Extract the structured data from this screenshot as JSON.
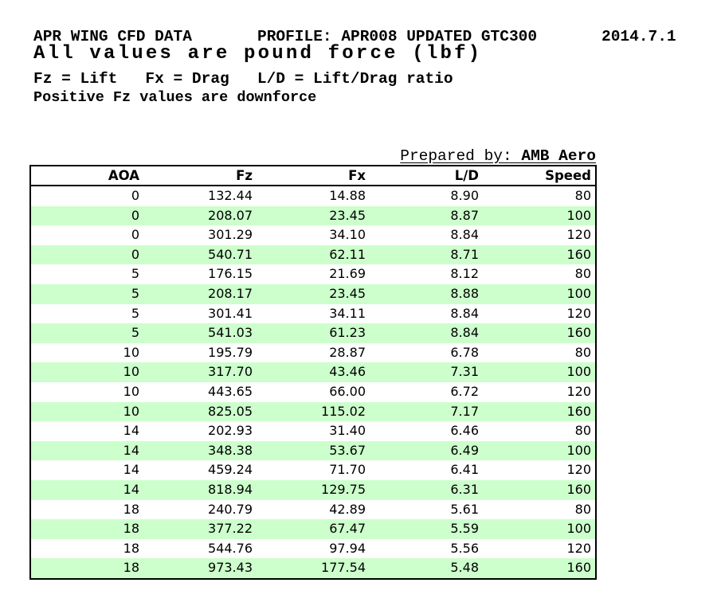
{
  "header": {
    "title": "APR WING CFD DATA",
    "profile": "PROFILE: APR008 UPDATED GTC300",
    "version": "2014.7.1",
    "subtitle": "All values are pound force (lbf)",
    "legend": "Fz = Lift   Fx = Drag   L/D = Lift/Drag ratio",
    "note": "Positive Fz values are downforce"
  },
  "prepared_by": {
    "label": "Prepared by: ",
    "value": "AMB Aero"
  },
  "table": {
    "columns": [
      "AOA",
      "Fz",
      "Fx",
      "L/D",
      "Speed"
    ],
    "stripe_color": "#ccffcc",
    "rows": [
      [
        "0",
        "132.44",
        "14.88",
        "8.90",
        "80"
      ],
      [
        "0",
        "208.07",
        "23.45",
        "8.87",
        "100"
      ],
      [
        "0",
        "301.29",
        "34.10",
        "8.84",
        "120"
      ],
      [
        "0",
        "540.71",
        "62.11",
        "8.71",
        "160"
      ],
      [
        "5",
        "176.15",
        "21.69",
        "8.12",
        "80"
      ],
      [
        "5",
        "208.17",
        "23.45",
        "8.88",
        "100"
      ],
      [
        "5",
        "301.41",
        "34.11",
        "8.84",
        "120"
      ],
      [
        "5",
        "541.03",
        "61.23",
        "8.84",
        "160"
      ],
      [
        "10",
        "195.79",
        "28.87",
        "6.78",
        "80"
      ],
      [
        "10",
        "317.70",
        "43.46",
        "7.31",
        "100"
      ],
      [
        "10",
        "443.65",
        "66.00",
        "6.72",
        "120"
      ],
      [
        "10",
        "825.05",
        "115.02",
        "7.17",
        "160"
      ],
      [
        "14",
        "202.93",
        "31.40",
        "6.46",
        "80"
      ],
      [
        "14",
        "348.38",
        "53.67",
        "6.49",
        "100"
      ],
      [
        "14",
        "459.24",
        "71.70",
        "6.41",
        "120"
      ],
      [
        "14",
        "818.94",
        "129.75",
        "6.31",
        "160"
      ],
      [
        "18",
        "240.79",
        "42.89",
        "5.61",
        "80"
      ],
      [
        "18",
        "377.22",
        "67.47",
        "5.59",
        "100"
      ],
      [
        "18",
        "544.76",
        "97.94",
        "5.56",
        "120"
      ],
      [
        "18",
        "973.43",
        "177.54",
        "5.48",
        "160"
      ]
    ]
  }
}
